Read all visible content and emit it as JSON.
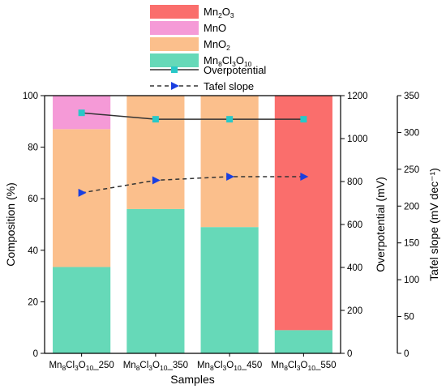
{
  "chart_data": {
    "type": "bar",
    "stacked": true,
    "categories": [
      {
        "base": "Mn",
        "parts": [
          [
            "8",
            "sub"
          ],
          [
            "Cl",
            ""
          ],
          [
            "3",
            "sub"
          ],
          [
            "O",
            ""
          ],
          [
            "10",
            "sub"
          ]
        ],
        "suffix": "_250"
      },
      {
        "base": "Mn",
        "parts": [
          [
            "8",
            "sub"
          ],
          [
            "Cl",
            ""
          ],
          [
            "3",
            "sub"
          ],
          [
            "O",
            ""
          ],
          [
            "10",
            "sub"
          ]
        ],
        "suffix": "_350"
      },
      {
        "base": "Mn",
        "parts": [
          [
            "8",
            "sub"
          ],
          [
            "Cl",
            ""
          ],
          [
            "3",
            "sub"
          ],
          [
            "O",
            ""
          ],
          [
            "10",
            "sub"
          ]
        ],
        "suffix": "_450"
      },
      {
        "base": "Mn",
        "parts": [
          [
            "8",
            "sub"
          ],
          [
            "Cl",
            ""
          ],
          [
            "3",
            "sub"
          ],
          [
            "O",
            ""
          ],
          [
            "10",
            "sub"
          ]
        ],
        "suffix": "_550"
      }
    ],
    "category_names": [
      "Mn8Cl3O10_250",
      "Mn8Cl3O10_350",
      "Mn8Cl3O10_450",
      "Mn8Cl3O10_550"
    ],
    "xlabel": "Samples",
    "ylabel": "Composition (%)",
    "ylim": [
      0,
      100
    ],
    "yticks": [
      0,
      20,
      40,
      60,
      80,
      100
    ],
    "bar_series": [
      {
        "name": "Mn8Cl3O10",
        "color": "#66d9b8",
        "values": [
          33.5,
          56,
          49,
          9
        ]
      },
      {
        "name": "MnO2",
        "color": "#fbbf8c",
        "values": [
          53.5,
          44,
          51,
          0
        ]
      },
      {
        "name": "MnO",
        "color": "#f59ad7",
        "values": [
          13,
          0,
          0,
          0
        ]
      },
      {
        "name": "Mn2O3",
        "color": "#fa6e6c",
        "values": [
          0,
          0,
          0,
          91
        ]
      }
    ],
    "line_series": [
      {
        "name": "Overpotential",
        "axis": "right1",
        "style": "solid",
        "marker": "square",
        "line_color": "#333333",
        "marker_color": "#28c8c8",
        "values": [
          1120,
          1090,
          1090,
          1090
        ]
      },
      {
        "name": "Tafel slope",
        "axis": "right2",
        "style": "dashed",
        "marker": "triangle-right",
        "line_color": "#333333",
        "marker_color": "#1a3fe0",
        "values": [
          218,
          235,
          240,
          240
        ]
      }
    ],
    "y2label": "Overpotential (mV)",
    "y2lim": [
      0,
      1200
    ],
    "y2ticks": [
      0,
      200,
      400,
      600,
      800,
      1000,
      1200
    ],
    "y3label": "Tafel slope (mV dec⁻¹)",
    "y3lim": [
      0,
      350
    ],
    "y3ticks": [
      0,
      50,
      100,
      150,
      200,
      250,
      300,
      350
    ],
    "legend": {
      "placement": "top",
      "entries": [
        {
          "label": "Mn2O3",
          "kind": "patch",
          "color": "#fa6e6c",
          "rich": [
            [
              "Mn",
              ""
            ],
            [
              "2",
              "sub"
            ],
            [
              "O",
              ""
            ],
            [
              "3",
              "sub"
            ]
          ]
        },
        {
          "label": "MnO",
          "kind": "patch",
          "color": "#f59ad7",
          "rich": [
            [
              "MnO",
              ""
            ]
          ]
        },
        {
          "label": "MnO2",
          "kind": "patch",
          "color": "#fbbf8c",
          "rich": [
            [
              "MnO",
              ""
            ],
            [
              "2",
              "sub"
            ]
          ]
        },
        {
          "label": "Mn8Cl3O10",
          "kind": "patch",
          "color": "#66d9b8",
          "rich": [
            [
              "Mn",
              ""
            ],
            [
              "8",
              "sub"
            ],
            [
              "Cl",
              ""
            ],
            [
              "3",
              "sub"
            ],
            [
              "O",
              ""
            ],
            [
              "10",
              "sub"
            ]
          ]
        },
        {
          "label": "Overpotential",
          "kind": "line-solid",
          "color": "#333333",
          "marker_color": "#28c8c8",
          "rich": [
            [
              "Overpotential",
              ""
            ]
          ]
        },
        {
          "label": "Tafel slope",
          "kind": "line-dashed",
          "color": "#333333",
          "marker_color": "#1a3fe0",
          "rich": [
            [
              "Tafel slope",
              ""
            ]
          ]
        }
      ]
    }
  }
}
